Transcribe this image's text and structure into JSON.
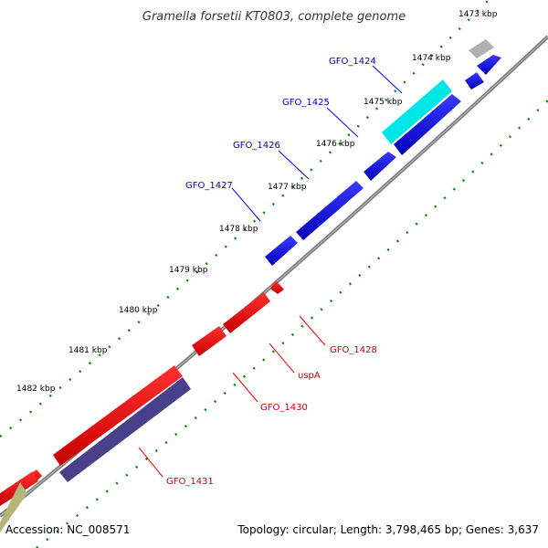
{
  "title": "Gramella forsetii KT0803, complete genome",
  "footer": {
    "accession": "Accession: NC_008571",
    "stats": "Topology: circular; Length: 3,798,465 bp; Genes: 3,637"
  },
  "ticks": [
    "1473 kbp",
    "1474 kbp",
    "1475 kbp",
    "1476 kbp",
    "1477 kbp",
    "1478 kbp",
    "1479 kbp",
    "1480 kbp",
    "1481 kbp",
    "1482 kbp"
  ],
  "genes_forward": [
    {
      "label": "GFO_1424",
      "color": "#00e5e5"
    },
    {
      "label": "GFO_1425",
      "color": "#0000e0"
    },
    {
      "label": "GFO_1426",
      "color": "#0000e0"
    },
    {
      "label": "GFO_1427",
      "color": "#0000e0"
    }
  ],
  "genes_reverse": [
    {
      "label": "GFO_1428",
      "color": "#ee0000"
    },
    {
      "label": "uspA",
      "color": "#ee0000"
    },
    {
      "label": "GFO_1430",
      "color": "#ee0000"
    },
    {
      "label": "GFO_1431",
      "color": "#ee0000"
    }
  ],
  "colors": {
    "backbone": "#7a7a7a",
    "tick_dots": "#008800",
    "forward_gene": "#0000e0",
    "reverse_gene": "#ee0000",
    "highlight_gene": "#00e5e5",
    "grey_gene": "#b0b0b0",
    "purple_gene": "#4a3f8a",
    "olive_gene": "#b5b57a"
  }
}
